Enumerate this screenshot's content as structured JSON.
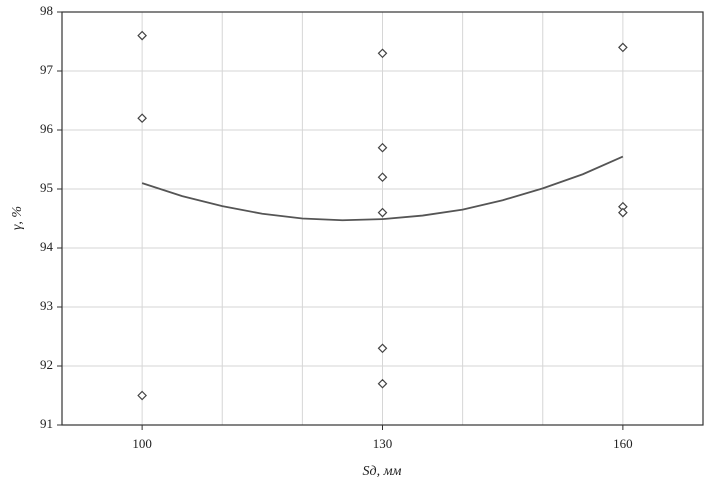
{
  "chart_data": {
    "type": "scatter",
    "x_label": "Sд, мм",
    "y_label": "γ, %",
    "xlim": [
      90,
      170
    ],
    "xticks": [
      100,
      130,
      160
    ],
    "xgrid": [
      110,
      120,
      140,
      150
    ],
    "ylim": [
      91,
      98
    ],
    "yticks": [
      91,
      92,
      93,
      94,
      95,
      96,
      97,
      98
    ],
    "grid": true,
    "series": [
      {
        "kind": "points",
        "color": "#444444",
        "x": [
          100,
          100,
          100,
          130,
          130,
          130,
          130,
          130,
          130,
          160,
          160,
          160
        ],
        "values": [
          97.6,
          96.2,
          91.5,
          97.3,
          95.7,
          95.2,
          94.6,
          92.3,
          91.7,
          97.4,
          94.7,
          94.6
        ]
      },
      {
        "kind": "line",
        "color": "#555555",
        "x": [
          100,
          105,
          110,
          115,
          120,
          125,
          130,
          135,
          140,
          145,
          150,
          155,
          160
        ],
        "values": [
          95.1,
          94.88,
          94.71,
          94.58,
          94.5,
          94.47,
          94.49,
          94.55,
          94.65,
          94.81,
          95.01,
          95.25,
          95.55
        ]
      }
    ]
  }
}
